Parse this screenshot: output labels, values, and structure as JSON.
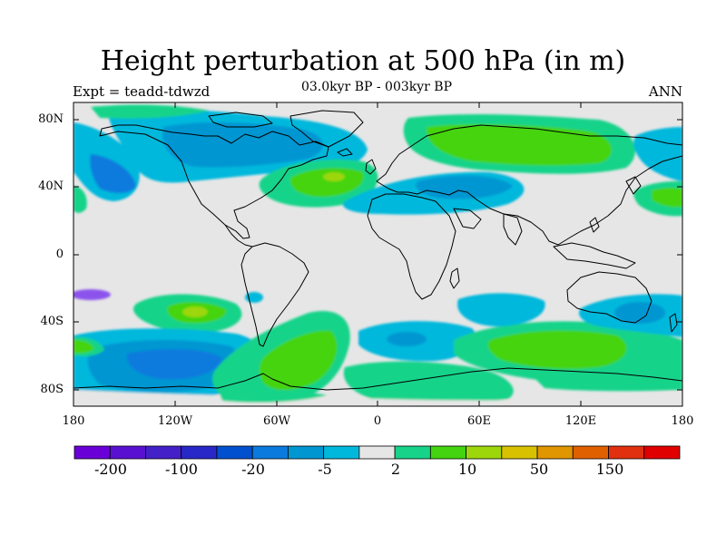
{
  "title": "Height perturbation at 500 hPa (in m)",
  "subtitle": "03.0kyr BP - 003kyr BP",
  "left_label": "Expt = teadd-tdwzd",
  "right_label": "ANN",
  "lat_labels": [
    "80N",
    "40N",
    "0",
    "40S",
    "80S"
  ],
  "lon_labels": [
    "180",
    "120W",
    "60W",
    "0",
    "60E",
    "120E",
    "180"
  ],
  "colorbar": {
    "colors": [
      "#6a00d8",
      "#5a10d0",
      "#4420c8",
      "#2828c8",
      "#0050d0",
      "#0a7ade",
      "#0096d2",
      "#00b8dc",
      "#e6e6e6",
      "#17d38a",
      "#44d410",
      "#9ed60c",
      "#d8c200",
      "#e09600",
      "#e06000",
      "#e03010",
      "#e00000"
    ],
    "tick_labels": [
      "-200",
      "-100",
      "-20",
      "-5",
      "2",
      "10",
      "50",
      "150"
    ]
  }
}
